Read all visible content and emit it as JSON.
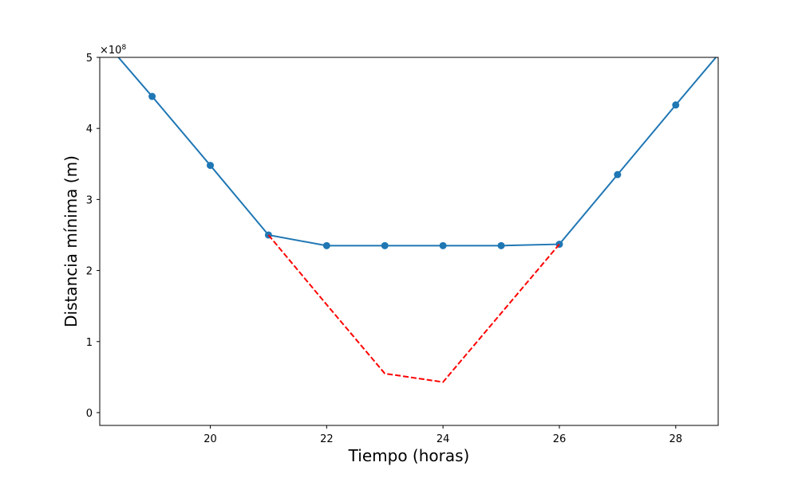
{
  "chart_data": {
    "type": "line",
    "xlabel": "Tiempo (horas)",
    "ylabel": "Distancia mínima (m)",
    "y_scale_factor_label": {
      "base": "×10",
      "exponent": "8"
    },
    "xlim": [
      18.1,
      28.73
    ],
    "ylim": [
      -0.18,
      5.0
    ],
    "y_scale_multiplier": 100000000,
    "x_ticks": [
      20,
      22,
      24,
      26,
      28
    ],
    "y_ticks": [
      0,
      1,
      2,
      3,
      4,
      5
    ],
    "grid": false,
    "series": [
      {
        "color": "#1f77b4",
        "style": "solid",
        "markers": true,
        "x": [
          18,
          19,
          20,
          21,
          22,
          23,
          24,
          25,
          26,
          27,
          28,
          29
        ],
        "y": [
          5.4,
          4.45,
          3.48,
          2.5,
          2.35,
          2.35,
          2.35,
          2.35,
          2.37,
          3.35,
          4.33,
          5.3
        ]
      },
      {
        "color": "#ff0000",
        "style": "dashed",
        "markers": false,
        "x": [
          21,
          22,
          23,
          24,
          25,
          26
        ],
        "y": [
          2.5,
          1.52,
          0.55,
          0.43,
          1.4,
          2.37
        ]
      }
    ]
  }
}
